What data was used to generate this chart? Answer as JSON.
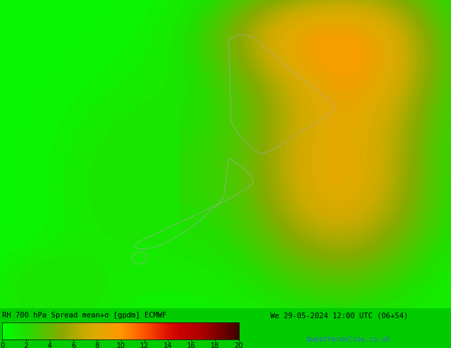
{
  "title_text": "RH 700 hPa Spread mean+σ [gpdm] ECMWF",
  "date_text": "We 29-05-2024 12:00 UTC (06+54)",
  "credit_text": "©weatheronline.co.uk",
  "colorbar_ticks": [
    0,
    2,
    4,
    6,
    8,
    10,
    12,
    14,
    16,
    18,
    20
  ],
  "colormap_colors": [
    [
      0.0,
      "#00ff00"
    ],
    [
      0.05,
      "#11ee00"
    ],
    [
      0.1,
      "#22dd00"
    ],
    [
      0.15,
      "#44cc00"
    ],
    [
      0.2,
      "#66bb00"
    ],
    [
      0.25,
      "#88aa00"
    ],
    [
      0.3,
      "#aaaa00"
    ],
    [
      0.35,
      "#ccaa00"
    ],
    [
      0.4,
      "#ddaa00"
    ],
    [
      0.45,
      "#eea000"
    ],
    [
      0.5,
      "#ff9900"
    ],
    [
      0.55,
      "#ff7700"
    ],
    [
      0.6,
      "#ff5500"
    ],
    [
      0.65,
      "#ee3300"
    ],
    [
      0.7,
      "#dd1100"
    ],
    [
      0.75,
      "#cc0000"
    ],
    [
      0.8,
      "#bb0000"
    ],
    [
      0.85,
      "#aa0000"
    ],
    [
      0.9,
      "#880000"
    ],
    [
      0.95,
      "#660000"
    ],
    [
      1.0,
      "#440000"
    ]
  ],
  "vmin": 0,
  "vmax": 20,
  "fig_width": 6.34,
  "fig_height": 4.9,
  "dpi": 100,
  "lon_min": 160.0,
  "lon_max": 185.0,
  "lat_min": -50.0,
  "lat_max": -32.0,
  "label_fontsize": 7.5,
  "credit_fontsize": 7,
  "colorbar_tick_fontsize": 7,
  "map_bg_color": "#00ff00"
}
